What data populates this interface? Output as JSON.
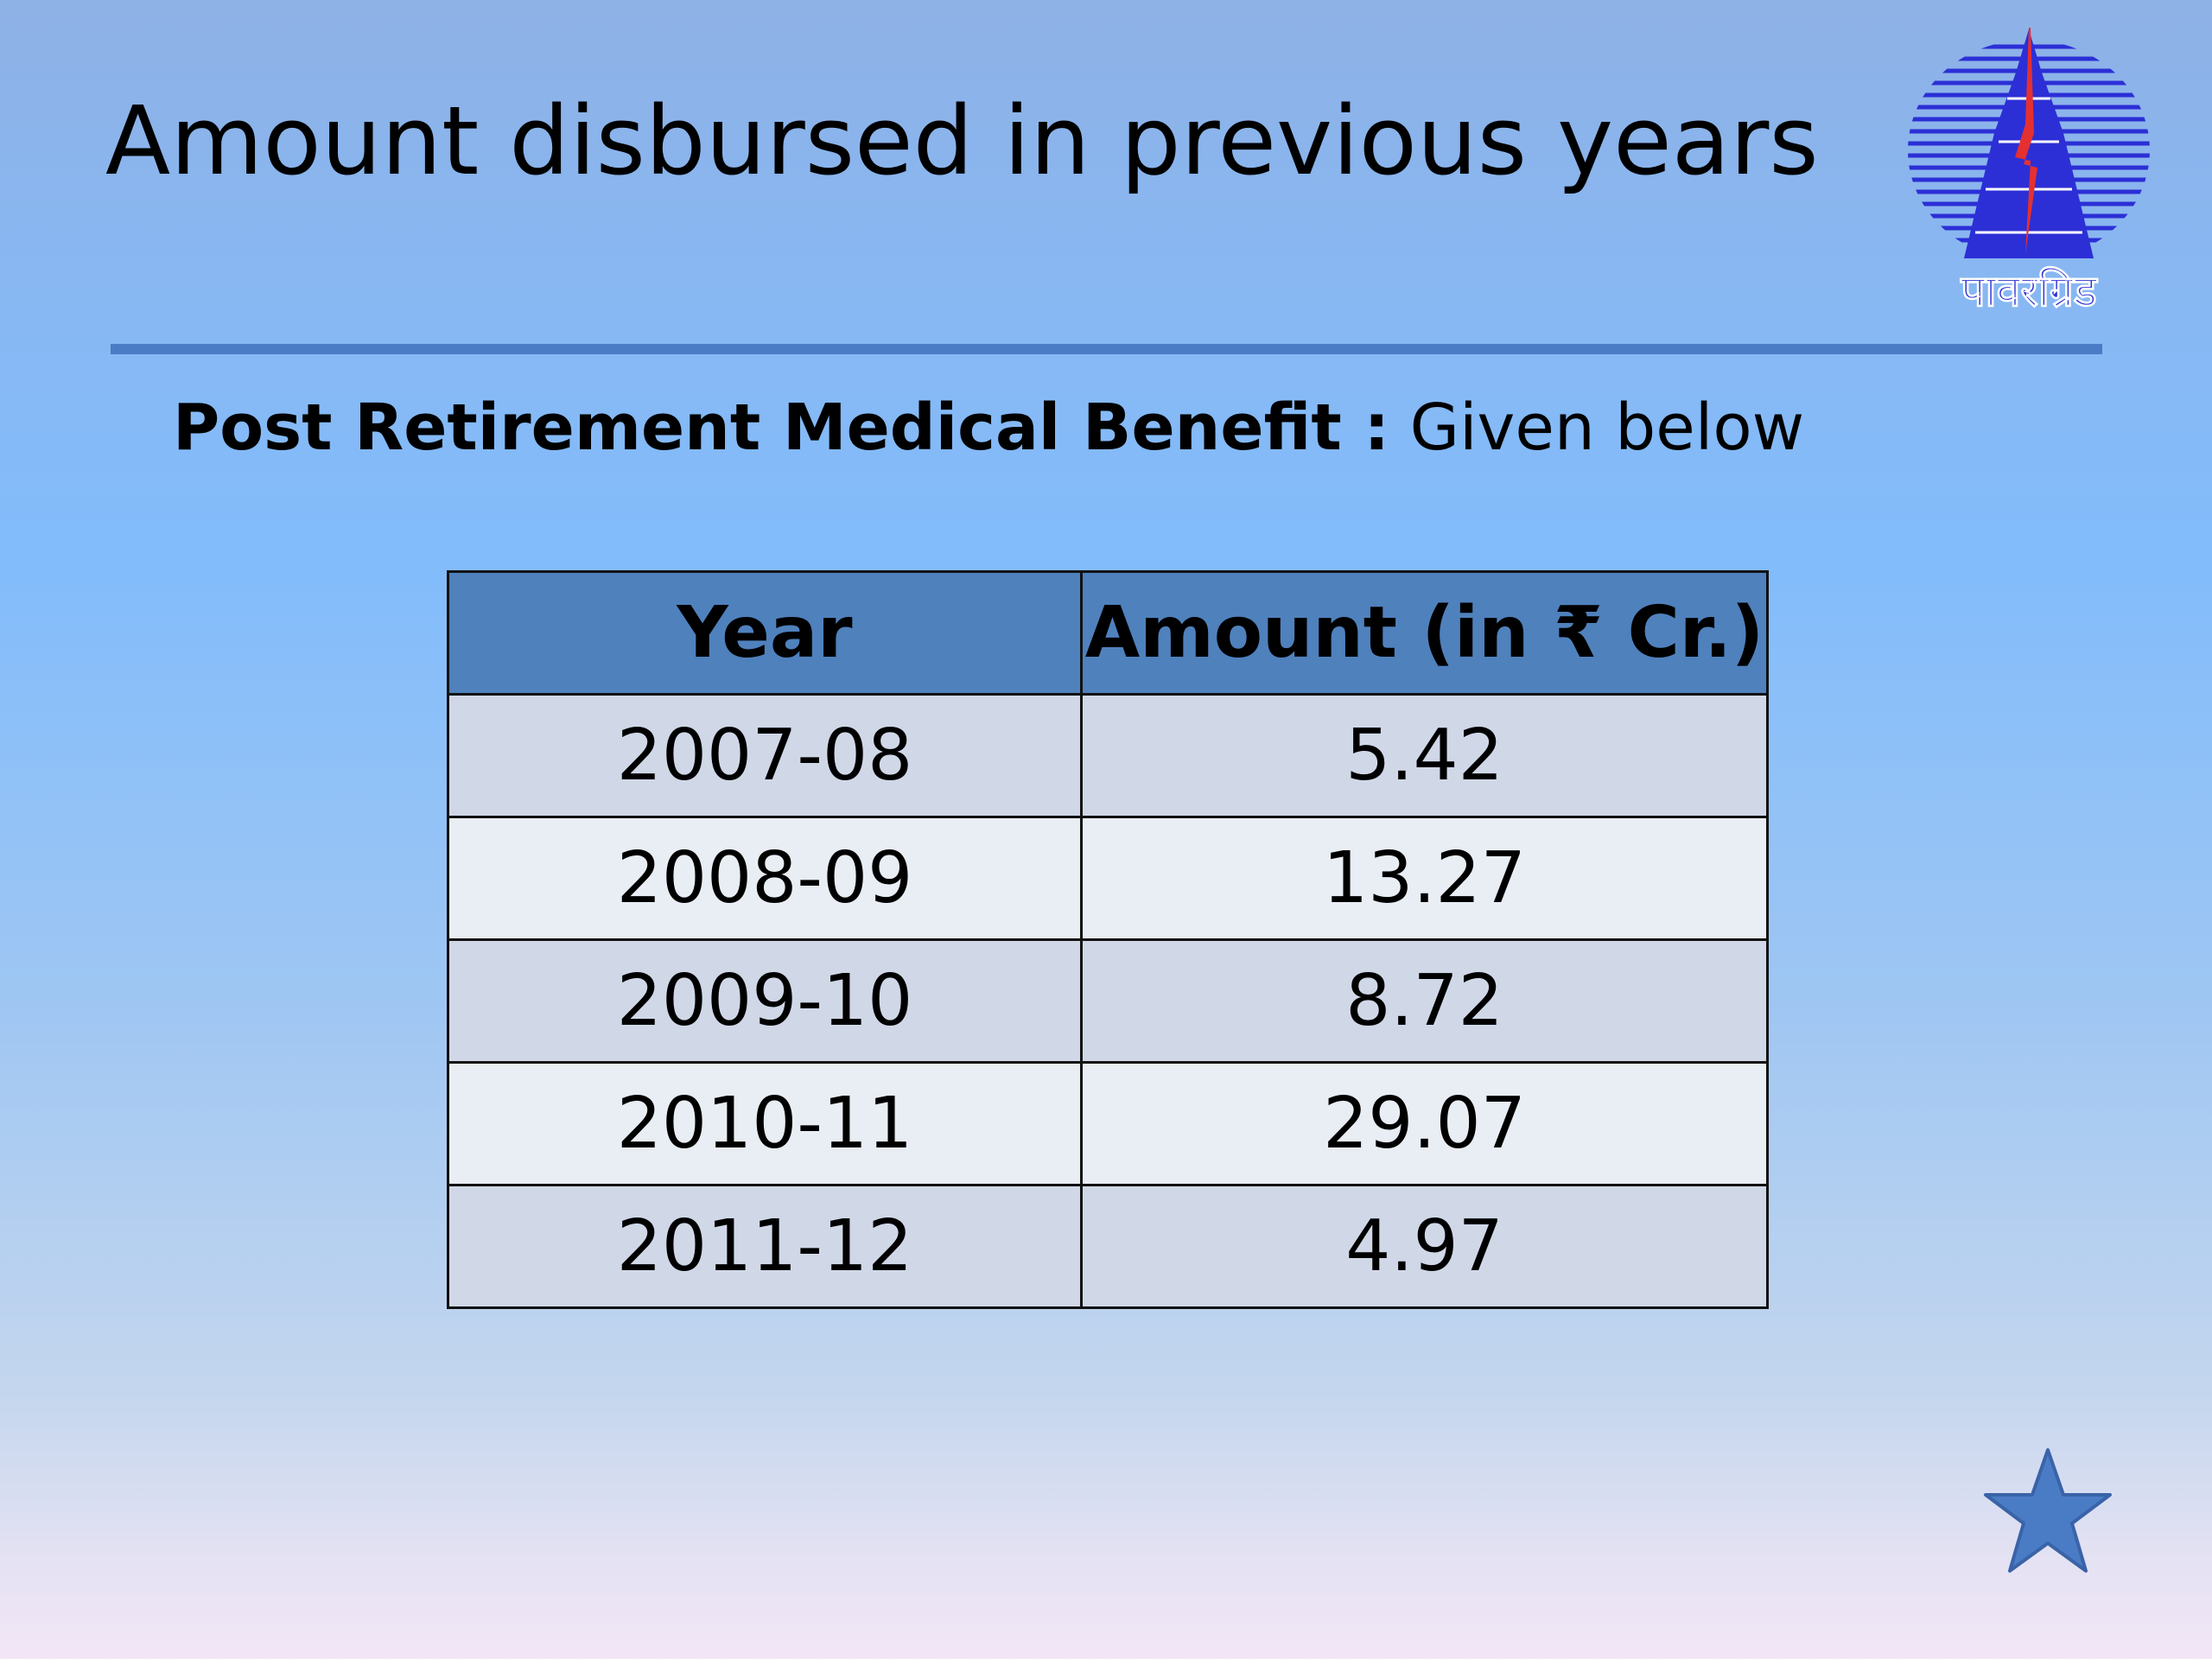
{
  "slide": {
    "title": "Amount disbursed in previous years",
    "subtitle_bold": "Post Retirement Medical Benefit :",
    "subtitle_normal": " Given below"
  },
  "logo": {
    "icon": "powergrid-logo",
    "text": "पावरग्रिड"
  },
  "table": {
    "headers": [
      "Year",
      "Amount (in ₹ Cr.)"
    ],
    "rows": [
      {
        "year": "2007-08",
        "amount": "5.42"
      },
      {
        "year": "2008-09",
        "amount": "13.27"
      },
      {
        "year": "2009-10",
        "amount": "8.72"
      },
      {
        "year": "2010-11",
        "amount": "29.07"
      },
      {
        "year": "2011-12",
        "amount": "4.97"
      }
    ]
  },
  "nav": {
    "icon": "star-icon"
  },
  "colors": {
    "rule": "#4a7cc5",
    "header_fill": "#4f81bd",
    "row_odd": "#d0d8e8",
    "row_even": "#e9edf4",
    "logo_blue": "#2c2fd6",
    "logo_red": "#e53030",
    "star": "#4a7cc5"
  }
}
